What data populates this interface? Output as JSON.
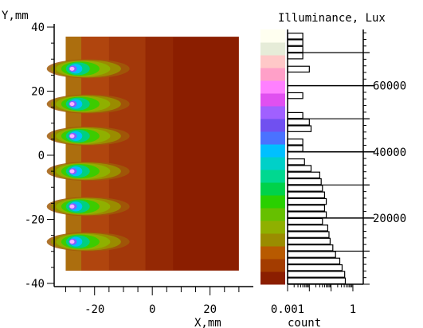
{
  "chart_data": {
    "type": "heatmap",
    "map": {
      "ylabel": "Y,mm",
      "xlabel": "X,mm",
      "xlim": [
        -34,
        35
      ],
      "ylim": [
        -41,
        41
      ],
      "region_x": [
        -30,
        30
      ],
      "region_y": [
        -36,
        37
      ],
      "x_ticks": [
        "-20",
        "0",
        "20"
      ],
      "x_tick_values": [
        -20,
        0,
        20
      ],
      "y_ticks": [
        "40",
        "20",
        "0",
        "-20",
        "-40"
      ],
      "y_tick_values": [
        40,
        20,
        0,
        -20,
        -40
      ],
      "sources_y": [
        27,
        16,
        6,
        -5,
        -16,
        -27
      ],
      "background": "#8b1e00",
      "boundary": "#b0460e",
      "mid_glow": "#a8a010"
    },
    "colorbar": {
      "title": "Illuminance, Lux",
      "ticks": [
        "60000",
        "40000",
        "20000"
      ],
      "tick_values": [
        60000,
        40000,
        20000
      ],
      "range": [
        0,
        77000
      ],
      "colors": [
        "#8b1e00",
        "#a33c00",
        "#b85a00",
        "#9a8c00",
        "#8fb000",
        "#66c000",
        "#2ad000",
        "#00d24a",
        "#00d890",
        "#00d0c8",
        "#00c0ff",
        "#4a72ff",
        "#7050f0",
        "#a060ff",
        "#e050f0",
        "#ff80ff",
        "#ffa0c8",
        "#ffc8c8",
        "#e6ecd8",
        "#fffff0"
      ]
    },
    "histogram": {
      "xlabel": "count",
      "x_ticks": [
        "0.001",
        "1"
      ],
      "x_tick_values": [
        0.001,
        1
      ],
      "xlim_log": [
        0.001,
        3
      ],
      "bin_width": 2000,
      "bins": [
        {
          "center": 1000,
          "count": 0.45
        },
        {
          "center": 3000,
          "count": 0.42
        },
        {
          "center": 5000,
          "count": 0.32
        },
        {
          "center": 7000,
          "count": 0.25
        },
        {
          "center": 9000,
          "count": 0.16
        },
        {
          "center": 11000,
          "count": 0.12
        },
        {
          "center": 13000,
          "count": 0.09
        },
        {
          "center": 15000,
          "count": 0.08
        },
        {
          "center": 17000,
          "count": 0.07
        },
        {
          "center": 19000,
          "count": 0.04
        },
        {
          "center": 21000,
          "count": 0.06
        },
        {
          "center": 23000,
          "count": 0.05
        },
        {
          "center": 25000,
          "count": 0.06
        },
        {
          "center": 27000,
          "count": 0.05
        },
        {
          "center": 29000,
          "count": 0.04
        },
        {
          "center": 31000,
          "count": 0.035
        },
        {
          "center": 33000,
          "count": 0.03
        },
        {
          "center": 35000,
          "count": 0.012
        },
        {
          "center": 37000,
          "count": 0.006
        },
        {
          "center": 41000,
          "count": 0.005
        },
        {
          "center": 43000,
          "count": 0.005
        },
        {
          "center": 47000,
          "count": 0.012
        },
        {
          "center": 49000,
          "count": 0.01
        },
        {
          "center": 51000,
          "count": 0.005
        },
        {
          "center": 57000,
          "count": 0.005
        },
        {
          "center": 65000,
          "count": 0.01
        },
        {
          "center": 69000,
          "count": 0.005
        },
        {
          "center": 71000,
          "count": 0.005
        },
        {
          "center": 73000,
          "count": 0.005
        },
        {
          "center": 75000,
          "count": 0.005
        }
      ]
    }
  }
}
